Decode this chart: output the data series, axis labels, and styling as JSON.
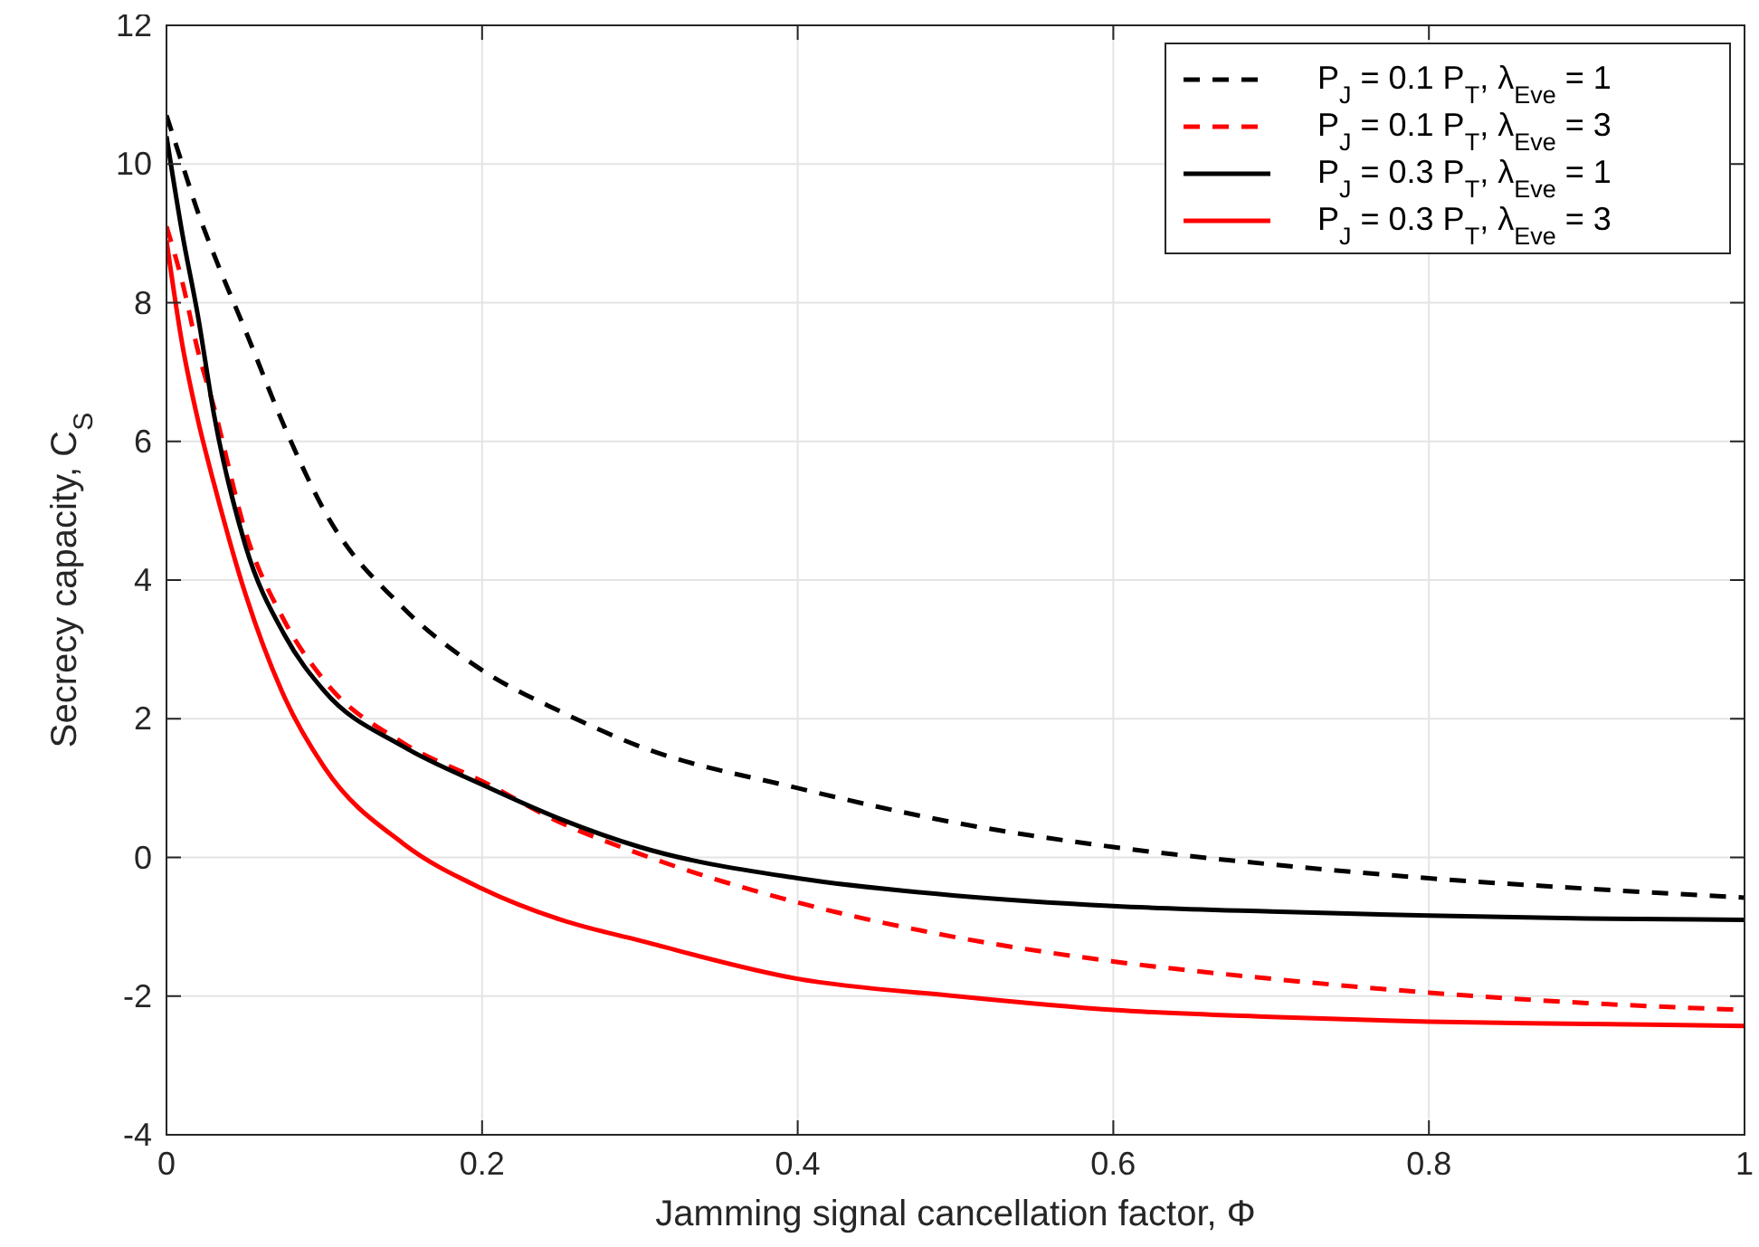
{
  "chart_data": {
    "type": "line",
    "xlabel": "Jamming signal cancellation factor,   Φ",
    "ylabel": "Secrecy capacity, C$_{S}$",
    "x": [
      0,
      0.01,
      0.02,
      0.03,
      0.05,
      0.075,
      0.1,
      0.15,
      0.2,
      0.25,
      0.3,
      0.4,
      0.5,
      0.6,
      0.7,
      0.8,
      0.9,
      1
    ],
    "series": [
      {
        "name": "P$_{J}$ = 0.1 P$_{T}$, λ$_{Eve}$ = 1",
        "color": "#000000",
        "line_style": "dashed",
        "values": [
          10.7,
          10.0,
          9.3,
          8.7,
          7.6,
          6.2,
          5.0,
          3.6,
          2.7,
          2.1,
          1.6,
          1.0,
          0.5,
          0.15,
          -0.1,
          -0.3,
          -0.45,
          -0.58
        ]
      },
      {
        "name": "P$_{J}$ = 0.1 P$_{T}$, λ$_{Eve}$ = 3",
        "color": "#ff0000",
        "line_style": "dashed",
        "values": [
          9.1,
          8.3,
          7.3,
          6.5,
          4.7,
          3.4,
          2.55,
          1.65,
          1.1,
          0.5,
          0.05,
          -0.65,
          -1.15,
          -1.5,
          -1.75,
          -1.95,
          -2.1,
          -2.2
        ]
      },
      {
        "name": "P$_{J}$ = 0.3 P$_{T}$, λ$_{Eve}$ = 1",
        "color": "#000000",
        "line_style": "solid",
        "values": [
          10.4,
          9.0,
          7.8,
          6.4,
          4.5,
          3.2,
          2.4,
          1.6,
          1.05,
          0.55,
          0.15,
          -0.3,
          -0.55,
          -0.7,
          -0.78,
          -0.84,
          -0.88,
          -0.9
        ]
      },
      {
        "name": "P$_{J}$ = 0.3 P$_{T}$, λ$_{Eve}$ = 3",
        "color": "#ff0000",
        "line_style": "solid",
        "values": [
          8.9,
          7.4,
          6.3,
          5.4,
          3.8,
          2.3,
          1.3,
          0.2,
          -0.45,
          -0.9,
          -1.2,
          -1.75,
          -2.0,
          -2.2,
          -2.3,
          -2.37,
          -2.4,
          -2.43
        ]
      }
    ],
    "xlim": [
      0,
      1
    ],
    "xticks": [
      0,
      0.2,
      0.4,
      0.6,
      0.8,
      1
    ],
    "ylim": [
      -4,
      12
    ],
    "yticks": [
      {
        "value": -4,
        "label": "-4"
      },
      {
        "value": -2,
        "label": "-2"
      },
      0,
      2,
      4,
      6,
      8,
      10,
      12
    ],
    "grid": true,
    "legend": "top right"
  }
}
